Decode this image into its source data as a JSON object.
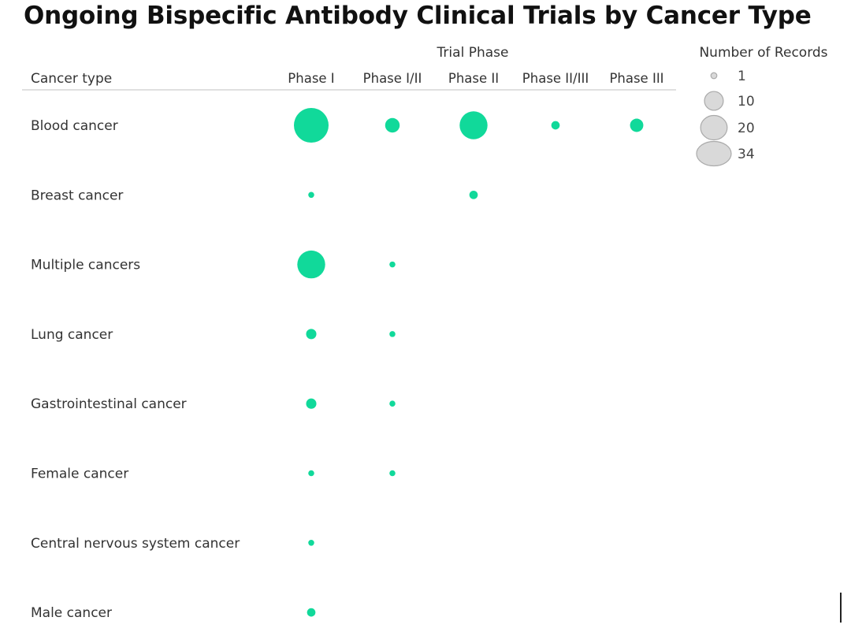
{
  "chart_data": {
    "type": "scatter",
    "title": "Ongoing Bispecific Antibody Clinical Trials by Cancer Type",
    "column_group_label": "Trial Phase",
    "row_header": "Cancer type",
    "x_categories": [
      "Phase I",
      "Phase I/II",
      "Phase II",
      "Phase II/III",
      "Phase III"
    ],
    "y_categories": [
      "Blood cancer",
      "Breast cancer",
      "Multiple cancers",
      "Lung cancer",
      "Gastrointestinal cancer",
      "Female cancer",
      "Central nervous system cancer",
      "Male cancer"
    ],
    "size_measure": "Number of Records",
    "points": [
      {
        "row": "Blood cancer",
        "phase": "Phase I",
        "value": 34
      },
      {
        "row": "Blood cancer",
        "phase": "Phase I/II",
        "value": 6
      },
      {
        "row": "Blood cancer",
        "phase": "Phase II",
        "value": 22
      },
      {
        "row": "Blood cancer",
        "phase": "Phase II/III",
        "value": 2
      },
      {
        "row": "Blood cancer",
        "phase": "Phase III",
        "value": 5
      },
      {
        "row": "Breast cancer",
        "phase": "Phase I",
        "value": 1
      },
      {
        "row": "Breast cancer",
        "phase": "Phase II",
        "value": 2
      },
      {
        "row": "Multiple cancers",
        "phase": "Phase I",
        "value": 22
      },
      {
        "row": "Multiple cancers",
        "phase": "Phase I/II",
        "value": 1
      },
      {
        "row": "Lung cancer",
        "phase": "Phase I",
        "value": 3
      },
      {
        "row": "Lung cancer",
        "phase": "Phase I/II",
        "value": 1
      },
      {
        "row": "Gastrointestinal cancer",
        "phase": "Phase I",
        "value": 3
      },
      {
        "row": "Gastrointestinal cancer",
        "phase": "Phase I/II",
        "value": 1
      },
      {
        "row": "Female cancer",
        "phase": "Phase I",
        "value": 1
      },
      {
        "row": "Female cancer",
        "phase": "Phase I/II",
        "value": 1
      },
      {
        "row": "Central nervous system cancer",
        "phase": "Phase I",
        "value": 1
      },
      {
        "row": "Male cancer",
        "phase": "Phase I",
        "value": 2
      }
    ],
    "legend": {
      "title": "Number of Records",
      "position": "top-right",
      "entries": [
        1,
        10,
        20,
        34
      ]
    },
    "colors": {
      "mark": "#11d99a",
      "legend_fill": "#d9d9d9",
      "legend_stroke": "#aaaaaa",
      "text": "#333333",
      "divider": "#d5d5d5"
    }
  }
}
